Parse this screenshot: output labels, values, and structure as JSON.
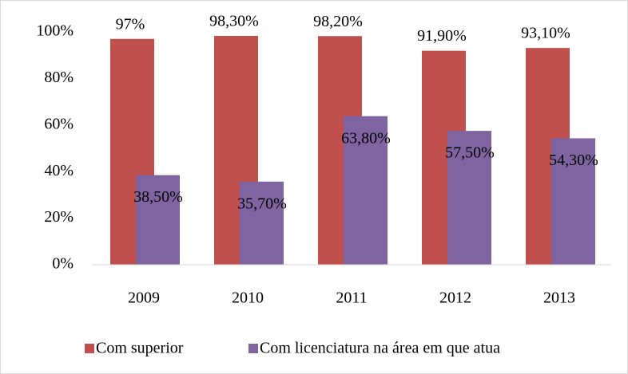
{
  "chart_data": {
    "type": "bar",
    "categories": [
      "2009",
      "2010",
      "2011",
      "2012",
      "2013"
    ],
    "series": [
      {
        "name": "Com superior",
        "color": "#c0504d",
        "values": [
          97,
          98.3,
          98.2,
          91.9,
          93.1
        ],
        "value_labels": [
          "97%",
          "98,30%",
          "98,20%",
          "91,90%",
          "93,10%"
        ]
      },
      {
        "name": "Com licenciatura na área em que atua",
        "color": "#8064a2",
        "values": [
          38.5,
          35.7,
          63.8,
          57.5,
          54.3
        ],
        "value_labels": [
          "38,50%",
          "35,70%",
          "63,80%",
          "57,50%",
          "54,30%"
        ]
      }
    ],
    "ylim": [
      0,
      100
    ],
    "yticks": [
      {
        "value": 0,
        "label": "0%"
      },
      {
        "value": 20,
        "label": "20%"
      },
      {
        "value": 40,
        "label": "40%"
      },
      {
        "value": 60,
        "label": "60%"
      },
      {
        "value": 80,
        "label": "80%"
      },
      {
        "value": 100,
        "label": "100%"
      }
    ],
    "grid": false,
    "legend": "bottom"
  }
}
